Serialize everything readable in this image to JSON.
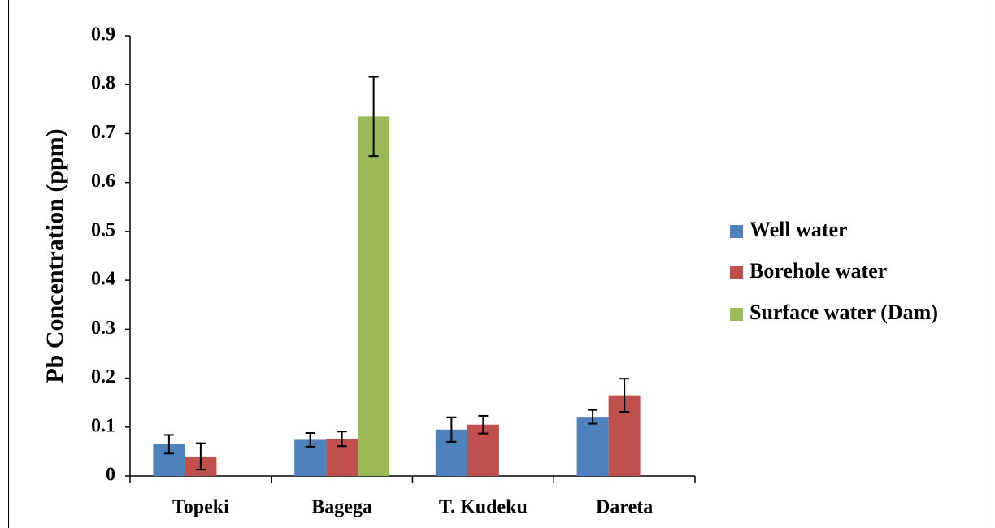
{
  "chart_data": {
    "type": "bar",
    "y_label": "Pb Concentration (ppm)",
    "categories": [
      "Topeki",
      "Bagega",
      "T. Kudeku",
      "Dareta"
    ],
    "series": [
      {
        "name": "Well water",
        "color": "#4f81bd",
        "values": [
          0.065,
          0.074,
          0.095,
          0.121
        ],
        "errors": [
          0.019,
          0.014,
          0.025,
          0.014
        ]
      },
      {
        "name": "Borehole water",
        "color": "#c0504d",
        "values": [
          0.04,
          0.076,
          0.105,
          0.165
        ],
        "errors": [
          0.027,
          0.015,
          0.018,
          0.034
        ]
      },
      {
        "name": "Surface water (Dam)",
        "color": "#9bbb59",
        "values": [
          null,
          0.735,
          null,
          null
        ],
        "errors": [
          null,
          0.081,
          null,
          null
        ]
      }
    ],
    "ylim": [
      0,
      0.9
    ],
    "yticks": [
      0,
      0.1,
      0.2,
      0.3,
      0.4,
      0.5,
      0.6,
      0.7,
      0.8,
      0.9
    ],
    "legend": "right"
  }
}
